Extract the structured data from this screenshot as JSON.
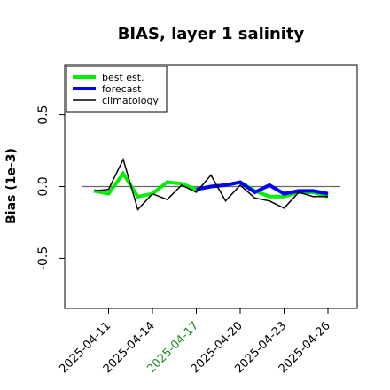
{
  "chart_data": {
    "type": "line",
    "title": "BIAS, layer 1 salinity",
    "xlabel": "",
    "ylabel": "Bias (1e-3)",
    "ylim": [
      -0.85,
      0.85
    ],
    "xlim": [
      "2025-04-08",
      "2025-04-28"
    ],
    "y_ticks": [
      -0.5,
      0.0,
      0.5
    ],
    "y_tick_labels": [
      "-0.5",
      "0.0",
      "0.5"
    ],
    "x_ticks": [
      "2025-04-11",
      "2025-04-14",
      "2025-04-17",
      "2025-04-20",
      "2025-04-23",
      "2025-04-26"
    ],
    "highlighted_x_tick": "2025-04-17",
    "highlight_color": "#228B22",
    "reference_line_y": 0.0,
    "legend_position": "top-left",
    "series": [
      {
        "name": "best est.",
        "color": "#00ee00",
        "x": [
          "2025-04-10",
          "2025-04-11",
          "2025-04-12",
          "2025-04-13",
          "2025-04-14",
          "2025-04-15",
          "2025-04-16",
          "2025-04-17",
          "2025-04-18",
          "2025-04-19",
          "2025-04-20",
          "2025-04-21",
          "2025-04-22",
          "2025-04-23",
          "2025-04-24",
          "2025-04-25",
          "2025-04-26"
        ],
        "values": [
          -0.03,
          -0.05,
          0.09,
          -0.07,
          -0.05,
          0.03,
          0.02,
          -0.02,
          0.0,
          0.01,
          0.03,
          -0.03,
          -0.07,
          -0.07,
          -0.04,
          -0.04,
          -0.07
        ]
      },
      {
        "name": "forecast",
        "color": "#0000ff",
        "x": [
          "2025-04-17",
          "2025-04-18",
          "2025-04-19",
          "2025-04-20",
          "2025-04-21",
          "2025-04-22",
          "2025-04-23",
          "2025-04-24",
          "2025-04-25",
          "2025-04-26"
        ],
        "values": [
          -0.02,
          0.0,
          0.01,
          0.03,
          -0.04,
          0.01,
          -0.05,
          -0.03,
          -0.03,
          -0.05
        ]
      },
      {
        "name": "climatology",
        "color": "#000000",
        "x": [
          "2025-04-10",
          "2025-04-11",
          "2025-04-12",
          "2025-04-13",
          "2025-04-14",
          "2025-04-15",
          "2025-04-16",
          "2025-04-17",
          "2025-04-18",
          "2025-04-19",
          "2025-04-20",
          "2025-04-21",
          "2025-04-22",
          "2025-04-23",
          "2025-04-24",
          "2025-04-25",
          "2025-04-26"
        ],
        "values": [
          -0.03,
          -0.02,
          0.19,
          -0.16,
          -0.05,
          -0.09,
          0.01,
          -0.04,
          0.08,
          -0.1,
          0.01,
          -0.08,
          -0.1,
          -0.15,
          -0.04,
          -0.07,
          -0.07
        ]
      }
    ]
  }
}
